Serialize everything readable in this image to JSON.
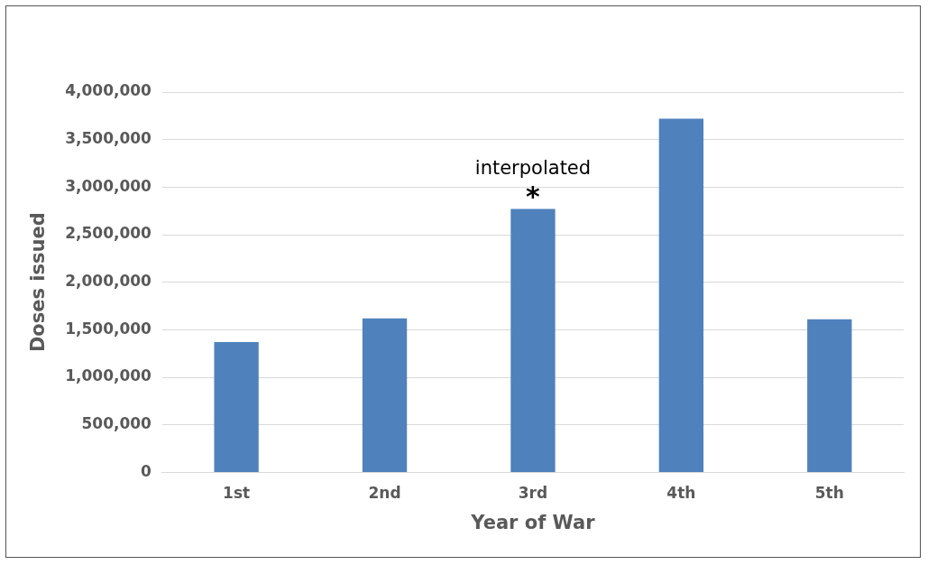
{
  "chart_data": {
    "type": "bar",
    "xlabel": "Year of War",
    "ylabel": "Doses issued",
    "categories": [
      "1st",
      "2nd",
      "3rd",
      "4th",
      "5th"
    ],
    "values": [
      1370000,
      1620000,
      2770000,
      3720000,
      1610000
    ],
    "color": "#4f81bd",
    "ylim": [
      0,
      4000000
    ],
    "yticks": [
      0,
      {
        "value": 500000,
        "label": "500,000"
      },
      {
        "value": 1000000,
        "label": "1,000,000"
      },
      {
        "value": 1500000,
        "label": "1,500,000"
      },
      {
        "value": 2000000,
        "label": "2,000,000"
      },
      {
        "value": 2500000,
        "label": "2,500,000"
      },
      {
        "value": 3000000,
        "label": "3,000,000"
      },
      {
        "value": 3500000,
        "label": "3,500,000"
      },
      {
        "value": 4000000,
        "label": "4,000,000"
      }
    ],
    "grid": "y",
    "legend": false,
    "annotations": [
      {
        "text": "interpolated",
        "x": "3rd",
        "y": 2770000
      },
      {
        "text": "*",
        "x": "3rd",
        "y": 2770000
      }
    ]
  }
}
